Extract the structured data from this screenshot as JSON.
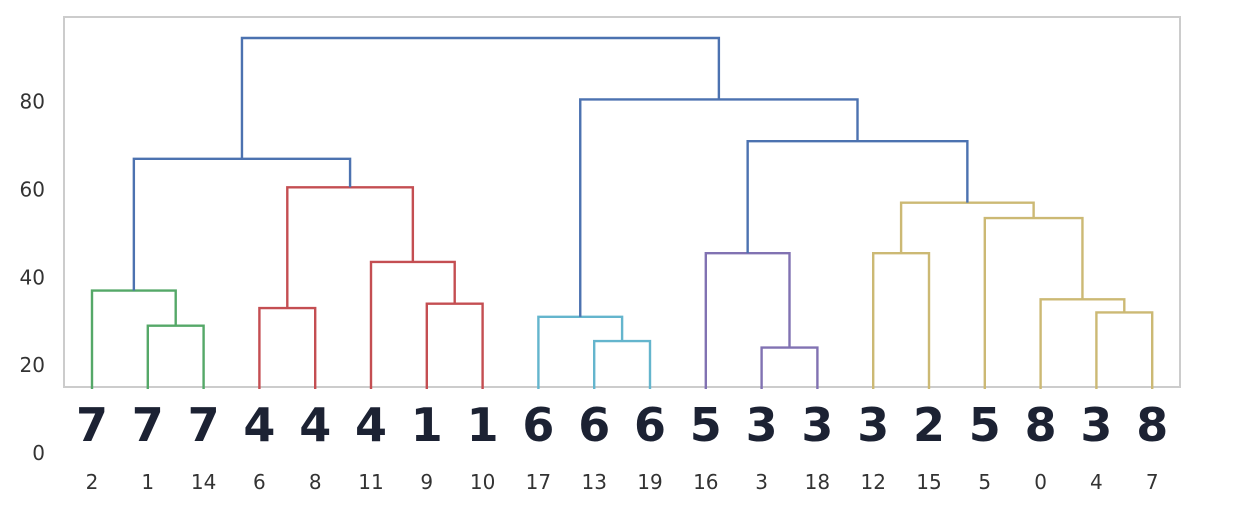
{
  "chart_data": {
    "type": "dendrogram",
    "title": "",
    "xlabel": "",
    "ylabel": "",
    "ylim": [
      0,
      96
    ],
    "yticks": [
      0,
      20,
      40,
      60,
      80
    ],
    "grid": false,
    "leaves": [
      {
        "label": "2",
        "digit": "7",
        "color": "#55a868"
      },
      {
        "label": "1",
        "digit": "7",
        "color": "#55a868"
      },
      {
        "label": "14",
        "digit": "7",
        "color": "#55a868"
      },
      {
        "label": "6",
        "digit": "4",
        "color": "#c44e52"
      },
      {
        "label": "8",
        "digit": "4",
        "color": "#c44e52"
      },
      {
        "label": "11",
        "digit": "4",
        "color": "#c44e52"
      },
      {
        "label": "9",
        "digit": "1",
        "color": "#c44e52"
      },
      {
        "label": "10",
        "digit": "1",
        "color": "#c44e52"
      },
      {
        "label": "17",
        "digit": "6",
        "color": "#64b5cd"
      },
      {
        "label": "13",
        "digit": "6",
        "color": "#64b5cd"
      },
      {
        "label": "19",
        "digit": "6",
        "color": "#64b5cd"
      },
      {
        "label": "16",
        "digit": "5",
        "color": "#8172b2"
      },
      {
        "label": "3",
        "digit": "3",
        "color": "#8172b2"
      },
      {
        "label": "18",
        "digit": "3",
        "color": "#8172b2"
      },
      {
        "label": "12",
        "digit": "3",
        "color": "#ccb974"
      },
      {
        "label": "15",
        "digit": "2",
        "color": "#ccb974"
      },
      {
        "label": "5",
        "digit": "5",
        "color": "#ccb974"
      },
      {
        "label": "0",
        "digit": "8",
        "color": "#ccb974"
      },
      {
        "label": "4",
        "digit": "3",
        "color": "#ccb974"
      },
      {
        "label": "7",
        "digit": "8",
        "color": "#ccb974"
      }
    ],
    "merges": [
      {
        "id": "A",
        "children": [
          "L:1",
          "L:14"
        ],
        "height": 29,
        "color": "#55a868"
      },
      {
        "id": "B",
        "children": [
          "L:2",
          "A"
        ],
        "height": 37,
        "color": "#55a868"
      },
      {
        "id": "C",
        "children": [
          "L:6",
          "L:8"
        ],
        "height": 33,
        "color": "#c44e52"
      },
      {
        "id": "D",
        "children": [
          "L:9",
          "L:10"
        ],
        "height": 34,
        "color": "#c44e52"
      },
      {
        "id": "E",
        "children": [
          "L:11",
          "D"
        ],
        "height": 43.5,
        "color": "#c44e52"
      },
      {
        "id": "F",
        "children": [
          "C",
          "E"
        ],
        "height": 60.5,
        "color": "#c44e52"
      },
      {
        "id": "G",
        "children": [
          "B",
          "F"
        ],
        "height": 67,
        "color": "#4c72b0"
      },
      {
        "id": "H",
        "children": [
          "L:13",
          "L:19"
        ],
        "height": 25.5,
        "color": "#64b5cd"
      },
      {
        "id": "I",
        "children": [
          "L:17",
          "H"
        ],
        "height": 31,
        "color": "#64b5cd"
      },
      {
        "id": "J",
        "children": [
          "L:3",
          "L:18"
        ],
        "height": 24,
        "color": "#8172b2"
      },
      {
        "id": "K",
        "children": [
          "L:16",
          "J"
        ],
        "height": 45.5,
        "color": "#8172b2"
      },
      {
        "id": "M",
        "children": [
          "L:12",
          "L:15"
        ],
        "height": 45.5,
        "color": "#ccb974"
      },
      {
        "id": "N",
        "children": [
          "L:4",
          "L:7"
        ],
        "height": 32,
        "color": "#ccb974"
      },
      {
        "id": "O",
        "children": [
          "L:0",
          "N"
        ],
        "height": 35,
        "color": "#ccb974"
      },
      {
        "id": "P",
        "children": [
          "L:5",
          "O"
        ],
        "height": 53.5,
        "color": "#ccb974"
      },
      {
        "id": "Q",
        "children": [
          "M",
          "P"
        ],
        "height": 57,
        "color": "#ccb974"
      },
      {
        "id": "R",
        "children": [
          "K",
          "Q"
        ],
        "height": 71,
        "color": "#4c72b0"
      },
      {
        "id": "S",
        "children": [
          "I",
          "R"
        ],
        "height": 80.5,
        "color": "#4c72b0"
      },
      {
        "id": "T",
        "children": [
          "G",
          "S"
        ],
        "height": 94.5,
        "color": "#4c72b0"
      }
    ]
  }
}
